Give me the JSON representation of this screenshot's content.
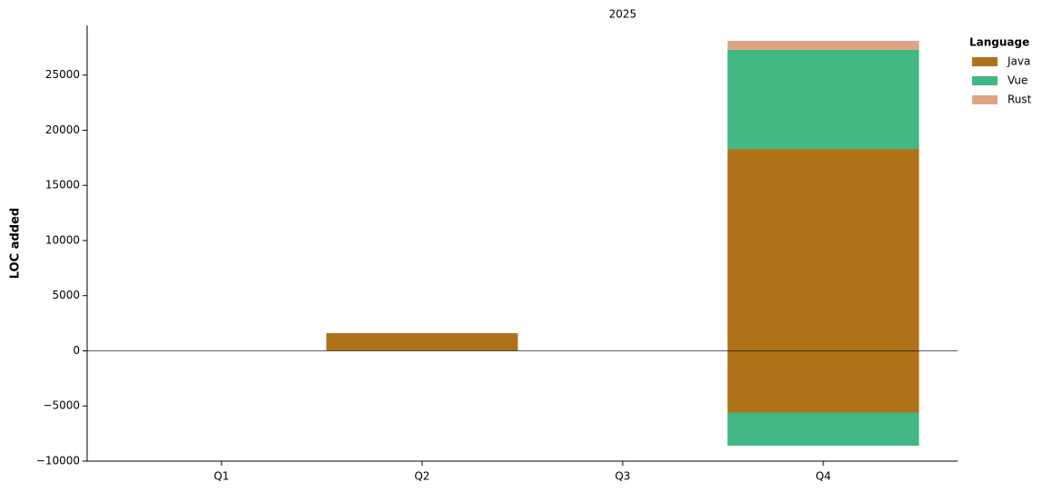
{
  "chart_data": {
    "type": "stacked-bar",
    "title": "2025",
    "y_label": "LOC added",
    "legend_title": "Language",
    "legend_position": "outside-right",
    "categories": [
      "Q1",
      "Q2",
      "Q3",
      "Q4"
    ],
    "series": [
      {
        "name": "Java",
        "color": "#b07219",
        "values": [
          0,
          1600,
          0,
          18300
        ],
        "negative": [
          0,
          0,
          0,
          -5600
        ]
      },
      {
        "name": "Vue",
        "color": "#41b883",
        "values": [
          0,
          0,
          0,
          9000
        ],
        "negative": [
          0,
          0,
          0,
          -3000
        ]
      },
      {
        "name": "Rust",
        "color": "#dea584",
        "values": [
          0,
          0,
          0,
          800
        ],
        "negative": [
          0,
          0,
          0,
          0
        ]
      }
    ],
    "ylim": [
      -10000,
      29500
    ],
    "yticks": [
      {
        "value": -10000,
        "label": "−10000"
      },
      {
        "value": -5000,
        "label": "−5000"
      },
      0,
      5000,
      10000,
      15000,
      20000,
      25000
    ],
    "zero_line": true
  }
}
